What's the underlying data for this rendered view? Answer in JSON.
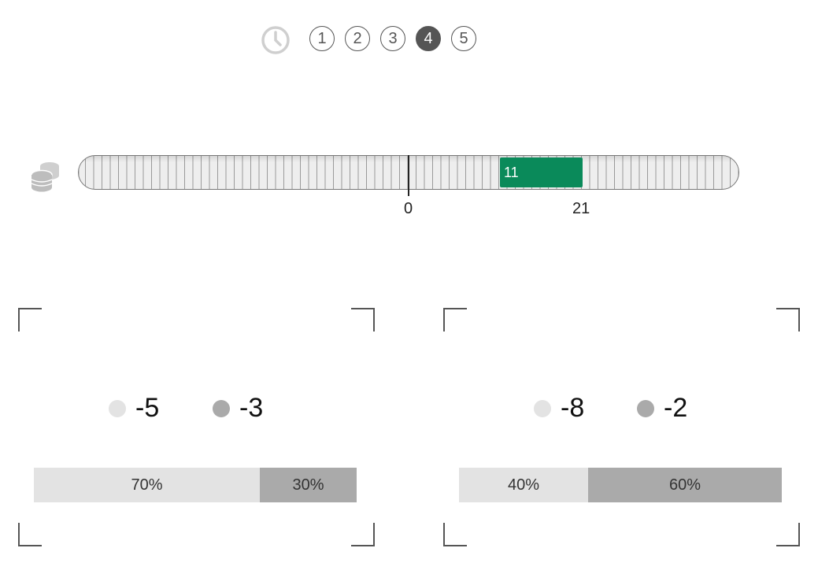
{
  "steps": {
    "items": [
      "1",
      "2",
      "3",
      "4",
      "5"
    ],
    "active_index": 3
  },
  "funds": {
    "gain_value": "11",
    "axis_labels": [
      "0",
      "21"
    ]
  },
  "options": [
    {
      "outcomes": [
        "-5",
        "-3"
      ],
      "probabilities": [
        "70%",
        "30%"
      ],
      "probability_values": [
        0.7,
        0.3
      ]
    },
    {
      "outcomes": [
        "-8",
        "-2"
      ],
      "probabilities": [
        "40%",
        "60%"
      ],
      "probability_values": [
        0.4,
        0.6
      ]
    }
  ],
  "colors": {
    "gain": "#0a8a5a",
    "outcome_light": "#e3e3e3",
    "outcome_dark": "#aaaaaa",
    "step_active": "#555555"
  },
  "icons": [
    "clock-icon",
    "coins-icon"
  ]
}
